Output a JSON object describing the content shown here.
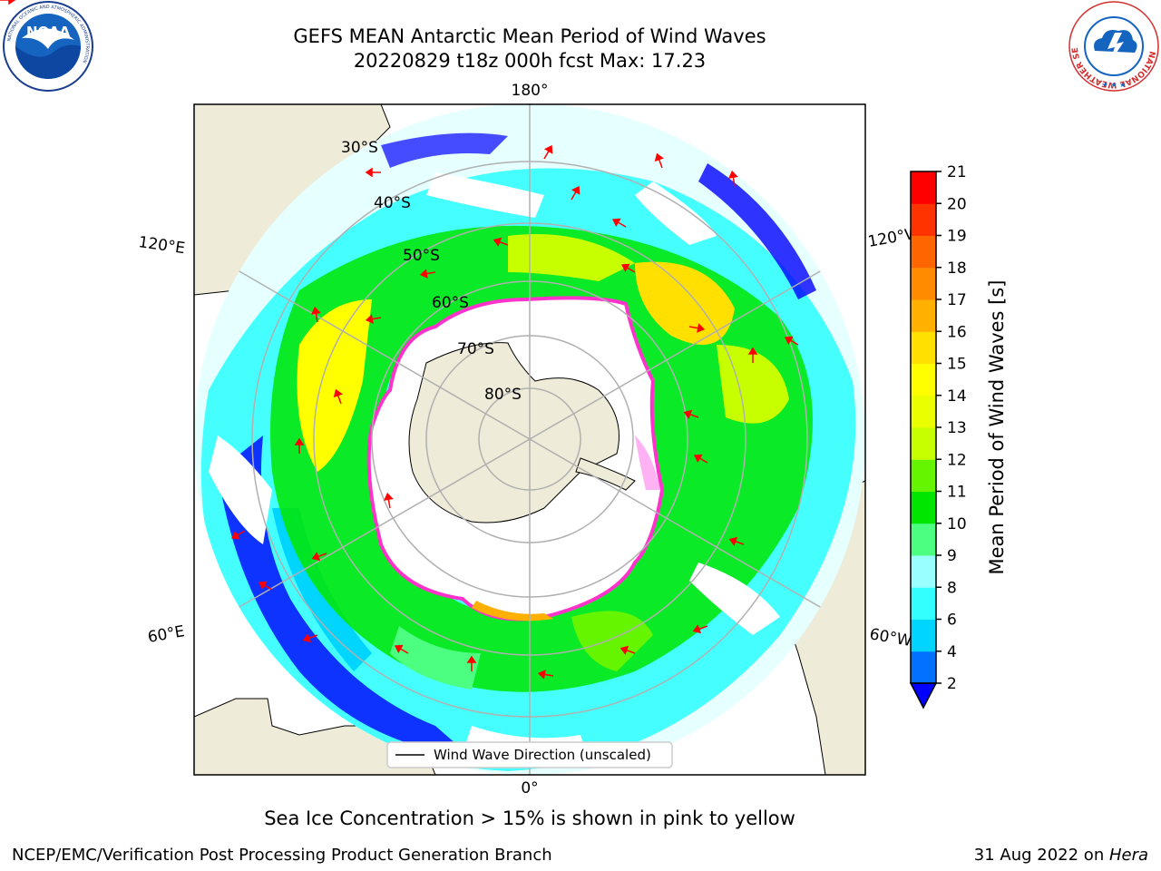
{
  "header": {
    "title_line1": "GEFS MEAN Antarctic Mean Period of Wind Waves",
    "title_line2": "20220829 t18z 000h fcst   Max: 17.23"
  },
  "logos": {
    "left_text": "NOAA",
    "left_ring_text": "NATIONAL OCEANIC AND ATMOSPHERIC ADMINISTRATION",
    "left_bottom_text": "U.S. DEPARTMENT OF COMMERCE",
    "right_ring_text": "NATIONAL WEATHER SERVICE"
  },
  "map": {
    "projection": "south-polar-stereographic",
    "longitude_labels": {
      "top": "180°",
      "bottom": "0°",
      "upper_left": "120°E",
      "upper_right": "120°W",
      "lower_left": "60°E",
      "lower_right": "60°W"
    },
    "latitude_labels": [
      "30°S",
      "40°S",
      "50°S",
      "60°S",
      "70°S",
      "80°S"
    ],
    "legend_label": "Wind Wave Direction (unscaled)",
    "colors": {
      "land": "#efebd9",
      "ocean_blank": "#ffffff",
      "grid": "#b0b0b0",
      "sea_ice_edge": "#ff33cc",
      "arrow": "#ff0000"
    }
  },
  "colorbar": {
    "label": "Mean Period of Wind Waves [s]",
    "ticks": [
      "2",
      "4",
      "6",
      "8",
      "9",
      "10",
      "11",
      "12",
      "13",
      "14",
      "15",
      "16",
      "17",
      "18",
      "19",
      "20",
      "21"
    ],
    "colors": [
      "#0072ff",
      "#00d5ff",
      "#33ffff",
      "#99ffff",
      "#4dff80",
      "#00e600",
      "#66f500",
      "#c8ff00",
      "#eaff00",
      "#ffff00",
      "#ffe000",
      "#ffb000",
      "#ff8c00",
      "#ff6600",
      "#ff3300",
      "#ff0000"
    ],
    "under_color": "#0000ff",
    "extend": "min"
  },
  "chart_data": {
    "type": "heatmap",
    "title": "GEFS MEAN Antarctic Mean Period of Wind Waves",
    "subtitle": "20220829 t18z 000h fcst   Max: 17.23",
    "units": "s",
    "max_value": 17.23,
    "colorbar_range": [
      2,
      21
    ],
    "note": "Sea Ice Concentration > 15% is shown in pink to yellow"
  },
  "footer": {
    "note": "Sea Ice Concentration > 15% is shown in pink to yellow",
    "left": "NCEP/EMC/Verification Post Processing Product Generation Branch",
    "right_date": "31 Aug 2022 on ",
    "right_host": "Hera"
  }
}
